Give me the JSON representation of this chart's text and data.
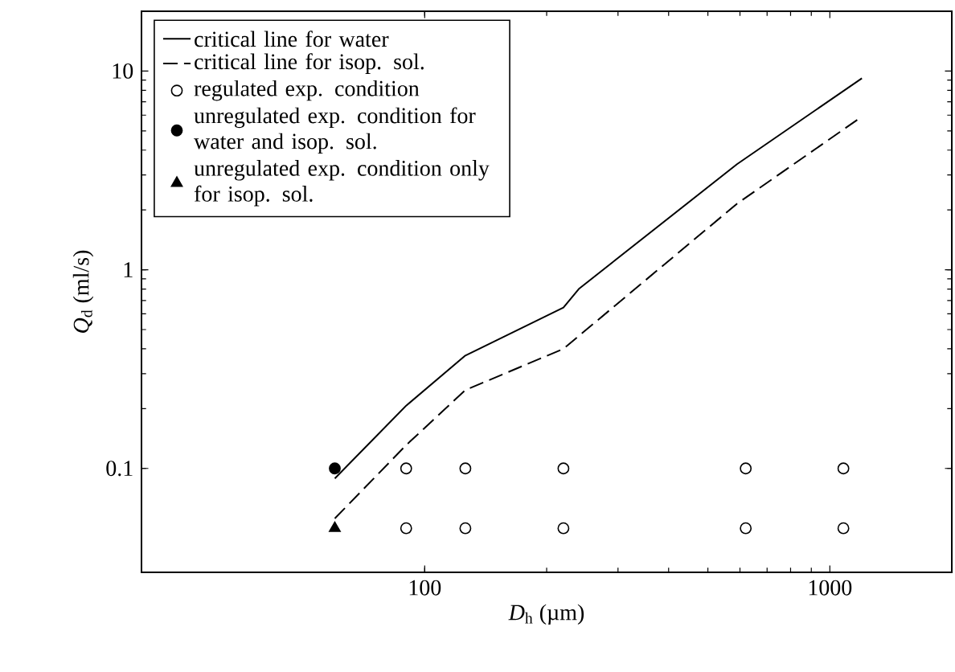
{
  "chart_data": {
    "type": "line",
    "xlabel": "*D*$_{h}$ (µm)",
    "ylabel": "*Q*$_{d}$ (ml/s)",
    "log": "xy",
    "xlim": [
      20,
      2000
    ],
    "ylim": [
      0.03,
      20
    ],
    "xticks": [
      100,
      1000
    ],
    "yticks": [
      0.1,
      1,
      10
    ],
    "legend": "top left",
    "grid": false,
    "series": [
      {
        "name": "critical line for water",
        "line_style": "solid",
        "marker": "none",
        "color": "#000000",
        "x": [
          60,
          90,
          126,
          220,
          240,
          590,
          1200
        ],
        "values": [
          0.089,
          0.207,
          0.37,
          0.645,
          0.8,
          3.4,
          9.2
        ]
      },
      {
        "name": "critical line for isop. sol.",
        "line_style": "dashed",
        "marker": "none",
        "color": "#000000",
        "x": [
          60,
          90,
          126,
          220,
          590,
          1200
        ],
        "values": [
          0.056,
          0.131,
          0.248,
          0.4,
          2.15,
          5.9
        ]
      },
      {
        "name": "regulated exp. condition",
        "type": "scatter",
        "marker": "circle",
        "color": "#ffffff",
        "x": [
          90,
          126,
          220,
          620,
          1080,
          90,
          126,
          220,
          620,
          1080
        ],
        "values": [
          0.1,
          0.1,
          0.1,
          0.1,
          0.1,
          0.05,
          0.05,
          0.05,
          0.05,
          0.05
        ]
      },
      {
        "name": "unregulated exp. condition for water and isop. sol.",
        "type": "scatter",
        "marker": "circle",
        "color": "#000000",
        "x": [
          60
        ],
        "values": [
          0.1
        ]
      },
      {
        "name": "unregulated exp. condition only for isop. sol.",
        "type": "scatter",
        "marker": "triangle",
        "color": "#000000",
        "x": [
          60
        ],
        "values": [
          0.05
        ]
      }
    ]
  }
}
